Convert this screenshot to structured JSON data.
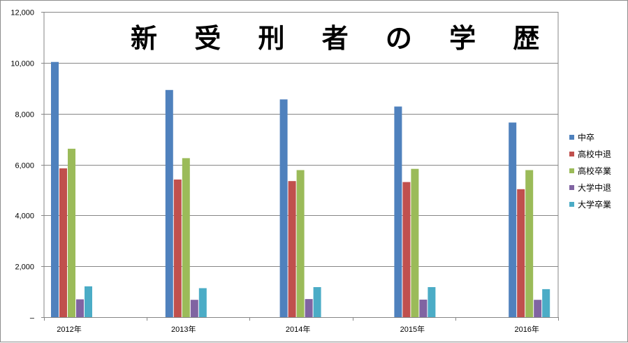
{
  "chart_data": {
    "type": "bar",
    "title": "新 受 刑 者 の 学 歴",
    "categories": [
      "2012年",
      "2013年",
      "2014年",
      "2015年",
      "2016年"
    ],
    "series": [
      {
        "name": "中卒",
        "color": "#4f81bd",
        "values": [
          10030,
          8930,
          8560,
          8280,
          7650
        ]
      },
      {
        "name": "高校中退",
        "color": "#c0504d",
        "values": [
          5850,
          5410,
          5350,
          5310,
          5030
        ]
      },
      {
        "name": "高校卒業",
        "color": "#9bbb59",
        "values": [
          6620,
          6250,
          5780,
          5830,
          5780
        ]
      },
      {
        "name": "大学中退",
        "color": "#8064a2",
        "values": [
          700,
          680,
          710,
          690,
          680
        ]
      },
      {
        "name": "大学卒業",
        "color": "#4bacc6",
        "values": [
          1210,
          1140,
          1180,
          1180,
          1100
        ]
      }
    ],
    "ylim": [
      0,
      12000
    ],
    "yticks": [
      "–",
      "2,000",
      "4,000",
      "6,000",
      "8,000",
      "10,000",
      "12,000"
    ],
    "ytick_values": [
      0,
      2000,
      4000,
      6000,
      8000,
      10000,
      12000
    ],
    "grid": true,
    "legend_position": "right"
  }
}
